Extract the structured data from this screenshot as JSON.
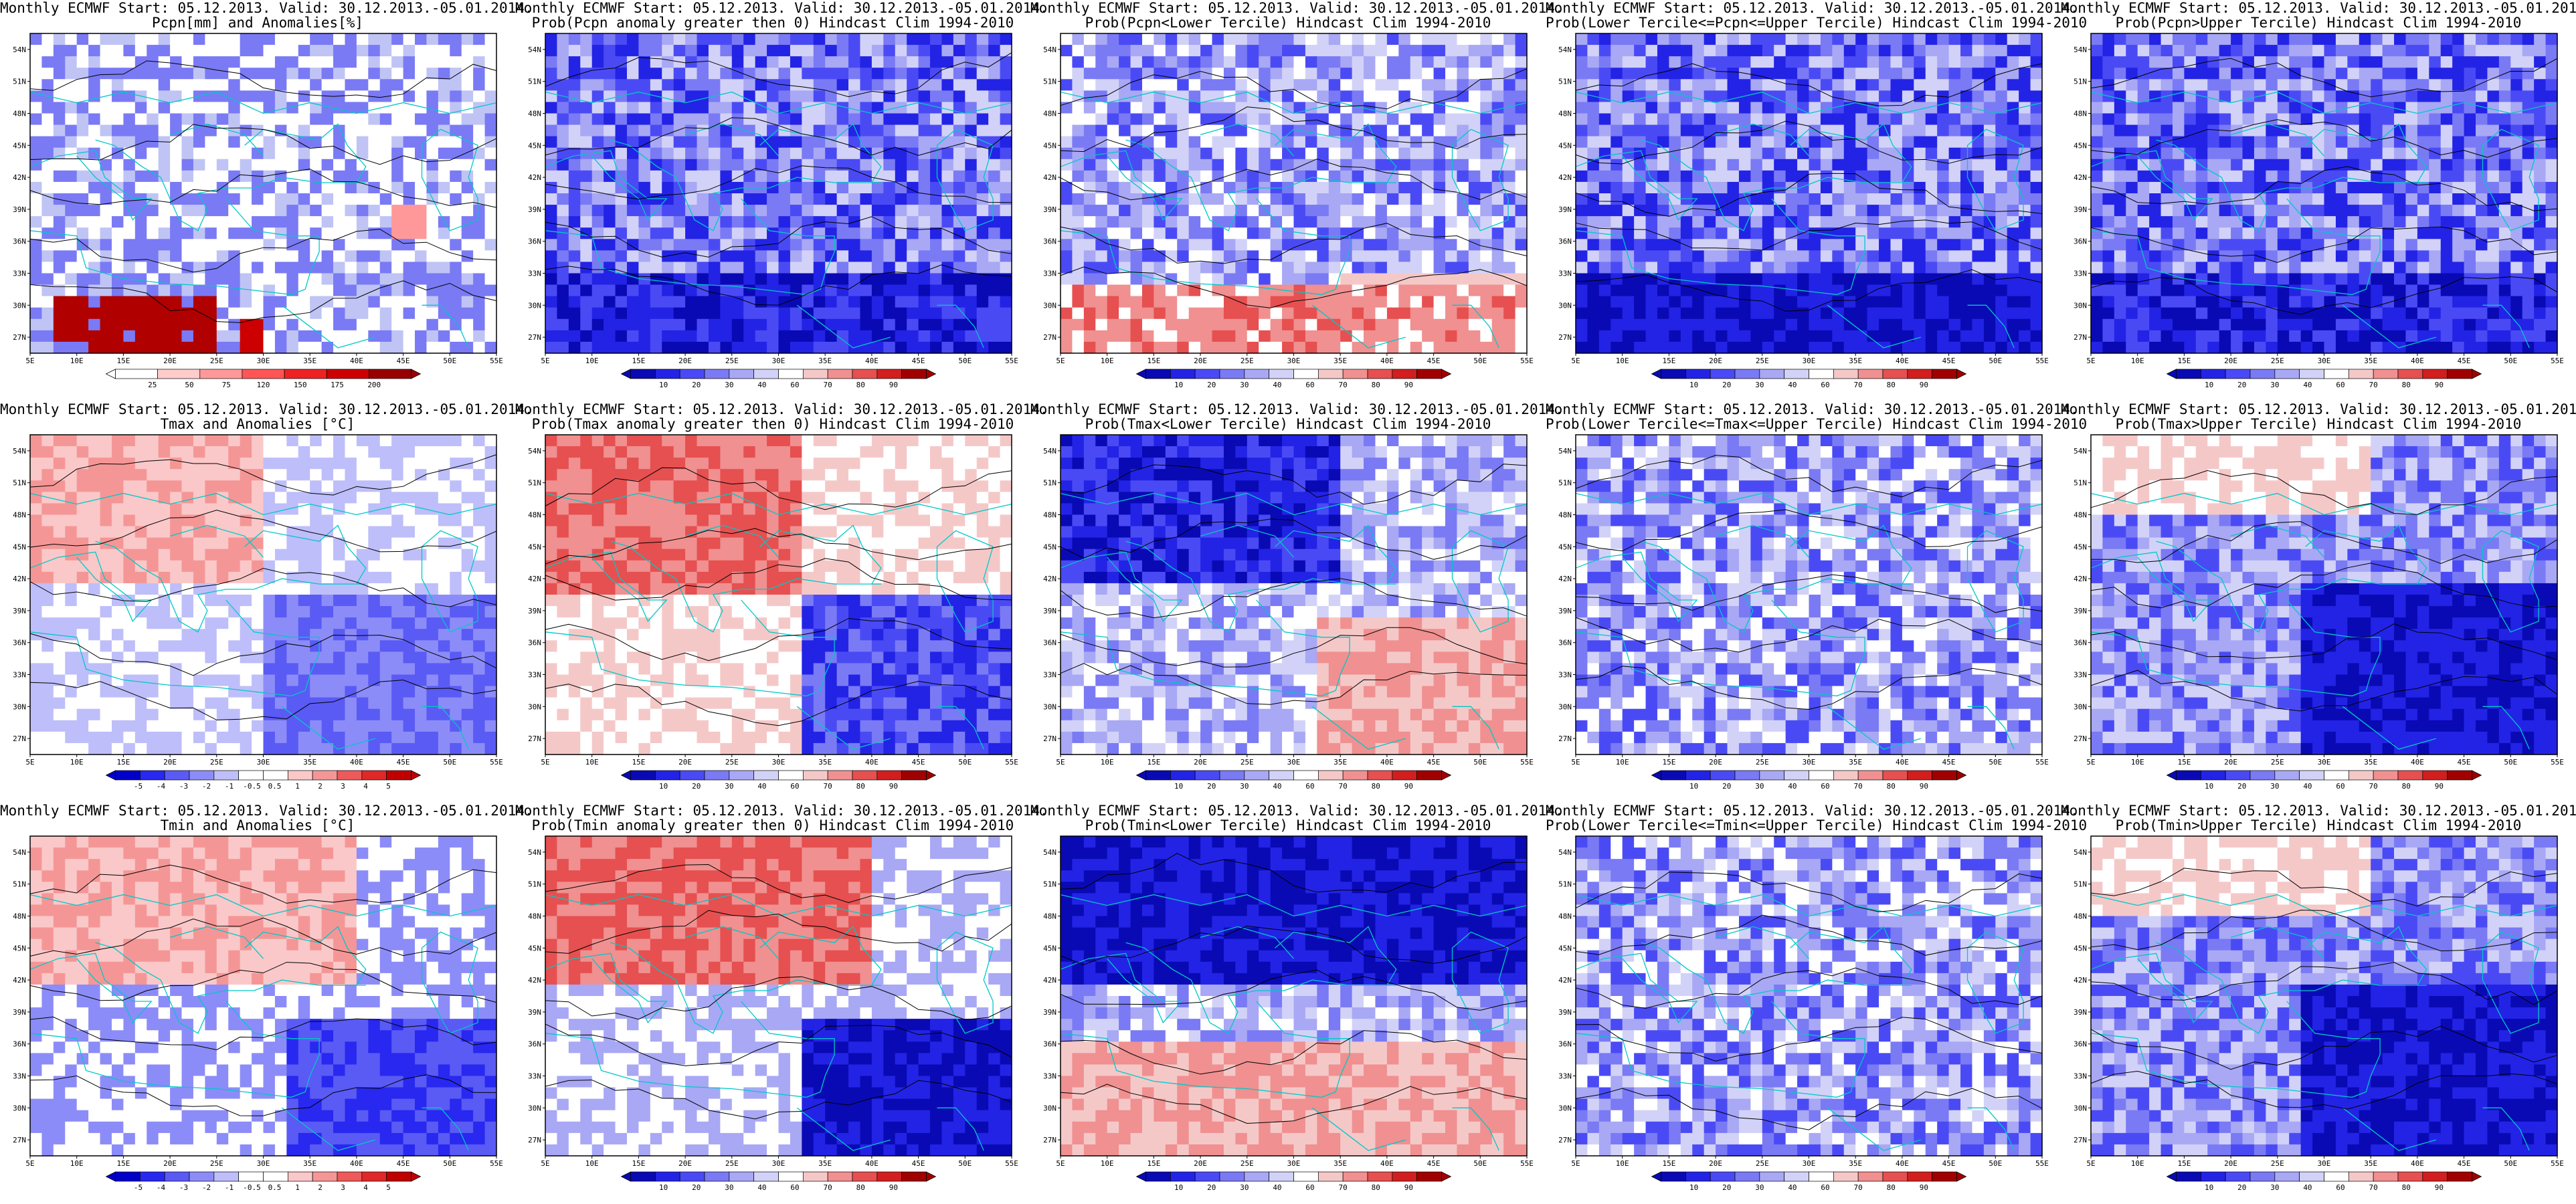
{
  "chart_data": [
    {
      "type": "heatmap",
      "row": 0,
      "col": 0,
      "title_line1": "Monthly ECMWF Start: 05.12.2013. Valid: 30.12.2013.-05.01.2014.",
      "title_line2": "Pcpn[mm] and Anomalies[%]",
      "palette": "anomaly_pcpn",
      "colorbar_labels": [
        "25",
        "50",
        "75",
        "120",
        "150",
        "175",
        "200"
      ],
      "xticks": [
        "5E",
        "10E",
        "15E",
        "20E",
        "25E",
        "30E",
        "35E",
        "40E",
        "45E",
        "50E",
        "55E"
      ],
      "yticks": [
        "27N",
        "30N",
        "33N",
        "36N",
        "39N",
        "42N",
        "45N",
        "48N",
        "51N",
        "54N"
      ],
      "xlim": [
        5,
        55
      ],
      "ylim": [
        25.5,
        55.5
      ],
      "pattern": "red block over north Africa (~27-31N, 8-25E), small red patch ~27N 28E and 37N 46E; blue patches across Europe"
    },
    {
      "type": "heatmap",
      "row": 0,
      "col": 1,
      "title_line1": "Monthly ECMWF Start: 05.12.2013. Valid: 30.12.2013.-05.01.2014.",
      "title_line2": "Prob(Pcpn anomaly greater then 0) Hindcast Clim 1994-2010",
      "palette": "prob",
      "colorbar_labels": [
        "10",
        "20",
        "30",
        "40",
        "60",
        "70",
        "80",
        "90"
      ],
      "xticks": [
        "5E",
        "10E",
        "15E",
        "20E",
        "25E",
        "30E",
        "35E",
        "40E",
        "45E",
        "50E",
        "55E"
      ],
      "yticks": [
        "27N",
        "30N",
        "33N",
        "36N",
        "39N",
        "42N",
        "45N",
        "48N",
        "51N",
        "54N"
      ],
      "xlim": [
        5,
        55
      ],
      "ylim": [
        25.5,
        55.5
      ],
      "pattern": "mostly blue, darker blue in south (27-33N)"
    },
    {
      "type": "heatmap",
      "row": 0,
      "col": 2,
      "title_line1": "Monthly ECMWF Start: 05.12.2013. Valid: 30.12.2013.-05.01.2014.",
      "title_line2": "Prob(Pcpn<Lower Tercile) Hindcast Clim 1994-2010",
      "palette": "prob",
      "colorbar_labels": [
        "10",
        "20",
        "30",
        "40",
        "60",
        "70",
        "80",
        "90"
      ],
      "xticks": [
        "5E",
        "10E",
        "15E",
        "20E",
        "25E",
        "30E",
        "35E",
        "40E",
        "45E",
        "50E",
        "55E"
      ],
      "yticks": [
        "27N",
        "30N",
        "33N",
        "36N",
        "39N",
        "42N",
        "45N",
        "48N",
        "51N",
        "54N"
      ],
      "xlim": [
        5,
        55
      ],
      "ylim": [
        25.5,
        55.5
      ],
      "pattern": "red along south edge (27-32N), blue in north"
    },
    {
      "type": "heatmap",
      "row": 0,
      "col": 3,
      "title_line1": "Monthly ECMWF Start: 05.12.2013. Valid: 30.12.2013.-05.01.2014.",
      "title_line2": "Prob(Lower Tercile<=Pcpn<=Upper Tercile) Hindcast Clim 1994-2010",
      "palette": "prob",
      "colorbar_labels": [
        "10",
        "20",
        "30",
        "40",
        "60",
        "70",
        "80",
        "90"
      ],
      "xticks": [
        "5E",
        "10E",
        "15E",
        "20E",
        "25E",
        "30E",
        "35E",
        "40E",
        "45E",
        "50E",
        "55E"
      ],
      "yticks": [
        "27N",
        "30N",
        "33N",
        "36N",
        "39N",
        "42N",
        "45N",
        "48N",
        "51N",
        "54N"
      ],
      "xlim": [
        5,
        55
      ],
      "ylim": [
        25.5,
        55.5
      ],
      "pattern": "blue throughout, dark blue band in south"
    },
    {
      "type": "heatmap",
      "row": 0,
      "col": 4,
      "title_line1": "Monthly ECMWF Start: 05.12.2013. Valid: 30.12.2013.-05.01.2014.",
      "title_line2": "Prob(Pcpn>Upper Tercile) Hindcast Clim 1994-2010",
      "palette": "prob",
      "colorbar_labels": [
        "10",
        "20",
        "30",
        "40",
        "60",
        "70",
        "80",
        "90"
      ],
      "xticks": [
        "5E",
        "10E",
        "15E",
        "20E",
        "25E",
        "30E",
        "35E",
        "40E",
        "45E",
        "50E",
        "55E"
      ],
      "yticks": [
        "27N",
        "30N",
        "33N",
        "36N",
        "39N",
        "42N",
        "45N",
        "48N",
        "51N",
        "54N"
      ],
      "xlim": [
        5,
        55
      ],
      "ylim": [
        25.5,
        55.5
      ],
      "pattern": "blue throughout, darker in south"
    },
    {
      "type": "heatmap",
      "row": 1,
      "col": 0,
      "title_line1": "Monthly ECMWF Start: 05.12.2013. Valid: 30.12.2013.-05.01.2014.",
      "title_line2": "Tmax and Anomalies [°C]",
      "palette": "anomaly_temp",
      "colorbar_labels": [
        "-5",
        "-4",
        "-3",
        "-2",
        "-1",
        "-0.5",
        "0.5",
        "1",
        "2",
        "3",
        "4",
        "5"
      ],
      "xticks": [
        "5E",
        "10E",
        "15E",
        "20E",
        "25E",
        "30E",
        "35E",
        "40E",
        "45E",
        "50E",
        "55E"
      ],
      "yticks": [
        "27N",
        "30N",
        "33N",
        "36N",
        "39N",
        "42N",
        "45N",
        "48N",
        "51N",
        "54N"
      ],
      "xlim": [
        5,
        55
      ],
      "ylim": [
        25.5,
        55.5
      ],
      "pattern": "red over central Europe, blue over Anatolia/Middle East"
    },
    {
      "type": "heatmap",
      "row": 1,
      "col": 1,
      "title_line1": "Monthly ECMWF Start: 05.12.2013. Valid: 30.12.2013.-05.01.2014.",
      "title_line2": "Prob(Tmax anomaly greater then 0) Hindcast Clim 1994-2010",
      "palette": "prob",
      "colorbar_labels": [
        "10",
        "20",
        "30",
        "40",
        "60",
        "70",
        "80",
        "90"
      ],
      "xticks": [
        "5E",
        "10E",
        "15E",
        "20E",
        "25E",
        "30E",
        "35E",
        "40E",
        "45E",
        "50E",
        "55E"
      ],
      "yticks": [
        "27N",
        "30N",
        "33N",
        "36N",
        "39N",
        "42N",
        "45N",
        "48N",
        "51N",
        "54N"
      ],
      "xlim": [
        5,
        55
      ],
      "ylim": [
        25.5,
        55.5
      ],
      "pattern": "red over central/eastern Europe, blue over Middle East"
    },
    {
      "type": "heatmap",
      "row": 1,
      "col": 2,
      "title_line1": "Monthly ECMWF Start: 05.12.2013. Valid: 30.12.2013.-05.01.2014.",
      "title_line2": "Prob(Tmax<Lower Tercile) Hindcast Clim 1994-2010",
      "palette": "prob",
      "colorbar_labels": [
        "10",
        "20",
        "30",
        "40",
        "60",
        "70",
        "80",
        "90"
      ],
      "xticks": [
        "5E",
        "10E",
        "15E",
        "20E",
        "25E",
        "30E",
        "35E",
        "40E",
        "45E",
        "50E",
        "55E"
      ],
      "yticks": [
        "27N",
        "30N",
        "33N",
        "36N",
        "39N",
        "42N",
        "45N",
        "48N",
        "51N",
        "54N"
      ],
      "xlim": [
        5,
        55
      ],
      "ylim": [
        25.5,
        55.5
      ],
      "pattern": "dark blue over Europe, red over Middle East"
    },
    {
      "type": "heatmap",
      "row": 1,
      "col": 3,
      "title_line1": "Monthly ECMWF Start: 05.12.2013. Valid: 30.12.2013.-05.01.2014.",
      "title_line2": "Prob(Lower Tercile<=Tmax<=Upper Tercile) Hindcast Clim 1994-2010",
      "palette": "prob",
      "colorbar_labels": [
        "10",
        "20",
        "30",
        "40",
        "60",
        "70",
        "80",
        "90"
      ],
      "xticks": [
        "5E",
        "10E",
        "15E",
        "20E",
        "25E",
        "30E",
        "35E",
        "40E",
        "45E",
        "50E",
        "55E"
      ],
      "yticks": [
        "27N",
        "30N",
        "33N",
        "36N",
        "39N",
        "42N",
        "45N",
        "48N",
        "51N",
        "54N"
      ],
      "xlim": [
        5,
        55
      ],
      "ylim": [
        25.5,
        55.5
      ],
      "pattern": "mixed blue and white"
    },
    {
      "type": "heatmap",
      "row": 1,
      "col": 4,
      "title_line1": "Monthly ECMWF Start: 05.12.2013. Valid: 30.12.2013.-05.01.2014.",
      "title_line2": "Prob(Tmax>Upper Tercile) Hindcast Clim 1994-2010",
      "palette": "prob",
      "colorbar_labels": [
        "10",
        "20",
        "30",
        "40",
        "60",
        "70",
        "80",
        "90"
      ],
      "xticks": [
        "5E",
        "10E",
        "15E",
        "20E",
        "25E",
        "30E",
        "35E",
        "40E",
        "45E",
        "50E",
        "55E"
      ],
      "yticks": [
        "27N",
        "30N",
        "33N",
        "36N",
        "39N",
        "42N",
        "45N",
        "48N",
        "51N",
        "54N"
      ],
      "xlim": [
        5,
        55
      ],
      "ylim": [
        25.5,
        55.5
      ],
      "pattern": "light red in north, dark blue over Middle East"
    },
    {
      "type": "heatmap",
      "row": 2,
      "col": 0,
      "title_line1": "Monthly ECMWF Start: 05.12.2013. Valid: 30.12.2013.-05.01.2014.",
      "title_line2": "Tmin and Anomalies [°C]",
      "palette": "anomaly_temp",
      "colorbar_labels": [
        "-5",
        "-4",
        "-3",
        "-2",
        "-1",
        "-0.5",
        "0.5",
        "1",
        "2",
        "3",
        "4",
        "5"
      ],
      "xticks": [
        "5E",
        "10E",
        "15E",
        "20E",
        "25E",
        "30E",
        "35E",
        "40E",
        "45E",
        "50E",
        "55E"
      ],
      "yticks": [
        "27N",
        "30N",
        "33N",
        "36N",
        "39N",
        "42N",
        "45N",
        "48N",
        "51N",
        "54N"
      ],
      "xlim": [
        5,
        55
      ],
      "ylim": [
        25.5,
        55.5
      ],
      "pattern": "red over Europe, blue over Mediterranean/Middle East"
    },
    {
      "type": "heatmap",
      "row": 2,
      "col": 1,
      "title_line1": "Monthly ECMWF Start: 05.12.2013. Valid: 30.12.2013.-05.01.2014.",
      "title_line2": "Prob(Tmin anomaly greater then 0) Hindcast Clim 1994-2010",
      "palette": "prob",
      "colorbar_labels": [
        "10",
        "20",
        "30",
        "40",
        "60",
        "70",
        "80",
        "90"
      ],
      "xticks": [
        "5E",
        "10E",
        "15E",
        "20E",
        "25E",
        "30E",
        "35E",
        "40E",
        "45E",
        "50E",
        "55E"
      ],
      "yticks": [
        "27N",
        "30N",
        "33N",
        "36N",
        "39N",
        "42N",
        "45N",
        "48N",
        "51N",
        "54N"
      ],
      "xlim": [
        5,
        55
      ],
      "ylim": [
        25.5,
        55.5
      ],
      "pattern": "red over Europe, dark blue over southeast"
    },
    {
      "type": "heatmap",
      "row": 2,
      "col": 2,
      "title_line1": "Monthly ECMWF Start: 05.12.2013. Valid: 30.12.2013.-05.01.2014.",
      "title_line2": "Prob(Tmin<Lower Tercile) Hindcast Clim 1994-2010",
      "palette": "prob",
      "colorbar_labels": [
        "10",
        "20",
        "30",
        "40",
        "60",
        "70",
        "80",
        "90"
      ],
      "xticks": [
        "5E",
        "10E",
        "15E",
        "20E",
        "25E",
        "30E",
        "35E",
        "40E",
        "45E",
        "50E",
        "55E"
      ],
      "yticks": [
        "27N",
        "30N",
        "33N",
        "36N",
        "39N",
        "42N",
        "45N",
        "48N",
        "51N",
        "54N"
      ],
      "xlim": [
        5,
        55
      ],
      "ylim": [
        25.5,
        55.5
      ],
      "pattern": "dark blue over Europe, red over Middle East and north Africa"
    },
    {
      "type": "heatmap",
      "row": 2,
      "col": 3,
      "title_line1": "Monthly ECMWF Start: 05.12.2013. Valid: 30.12.2013.-05.01.2014.",
      "title_line2": "Prob(Lower Tercile<=Tmin<=Upper Tercile) Hindcast Clim 1994-2010",
      "palette": "prob",
      "colorbar_labels": [
        "10",
        "20",
        "30",
        "40",
        "60",
        "70",
        "80",
        "90"
      ],
      "xticks": [
        "5E",
        "10E",
        "15E",
        "20E",
        "25E",
        "30E",
        "35E",
        "40E",
        "45E",
        "50E",
        "55E"
      ],
      "yticks": [
        "27N",
        "30N",
        "33N",
        "36N",
        "39N",
        "42N",
        "45N",
        "48N",
        "51N",
        "54N"
      ],
      "xlim": [
        5,
        55
      ],
      "ylim": [
        25.5,
        55.5
      ],
      "pattern": "mixed light blue and white"
    },
    {
      "type": "heatmap",
      "row": 2,
      "col": 4,
      "title_line1": "Monthly ECMWF Start: 05.12.2013. Valid: 30.12.2013.-05.01.2014.",
      "title_line2": "Prob(Tmin>Upper Tercile) Hindcast Clim 1994-2010",
      "palette": "prob",
      "colorbar_labels": [
        "10",
        "20",
        "30",
        "40",
        "60",
        "70",
        "80",
        "90"
      ],
      "xticks": [
        "5E",
        "10E",
        "15E",
        "20E",
        "25E",
        "30E",
        "35E",
        "40E",
        "45E",
        "50E",
        "55E"
      ],
      "yticks": [
        "27N",
        "30N",
        "33N",
        "36N",
        "39N",
        "42N",
        "45N",
        "48N",
        "51N",
        "54N"
      ],
      "xlim": [
        5,
        55
      ],
      "ylim": [
        25.5,
        55.5
      ],
      "pattern": "light red far north, dark blue over Middle East"
    }
  ],
  "colors": {
    "prob": [
      "#0a0ab4",
      "#2323e6",
      "#4a4af5",
      "#7a7af5",
      "#a8a8f5",
      "#d2d2f8",
      "#ffffff",
      "#f5c8c8",
      "#f09090",
      "#e65050",
      "#d21e1e",
      "#a00000"
    ],
    "anomaly_pcpn": [
      "#ffffff",
      "#ffcccc",
      "#ff9999",
      "#ff5555",
      "#ee2222",
      "#cc0000",
      "#990000"
    ],
    "coast": "#00c8c8",
    "contour": "#000000"
  }
}
